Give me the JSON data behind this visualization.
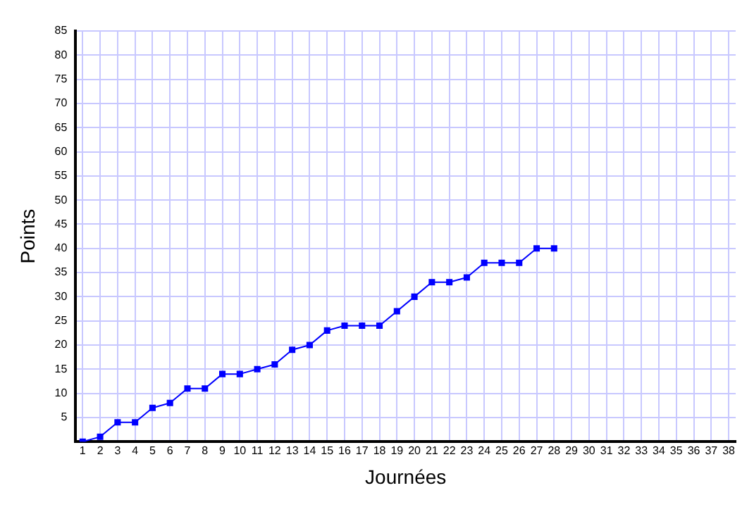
{
  "chart_data": {
    "type": "line",
    "xlabel": "Journées",
    "ylabel": "Points",
    "x": [
      1,
      2,
      3,
      4,
      5,
      6,
      7,
      8,
      9,
      10,
      11,
      12,
      13,
      14,
      15,
      16,
      17,
      18,
      19,
      20,
      21,
      22,
      23,
      24,
      25,
      26,
      27,
      28
    ],
    "series": [
      {
        "color": "#0000ff",
        "values": [
          0,
          1,
          4,
          4,
          7,
          8,
          11,
          11,
          14,
          14,
          15,
          16,
          19,
          20,
          23,
          24,
          24,
          24,
          27,
          30,
          33,
          33,
          34,
          37,
          37,
          37,
          40,
          40
        ]
      }
    ],
    "xlim": [
      0.6,
      38.4
    ],
    "xticks": [
      1,
      2,
      3,
      4,
      5,
      6,
      7,
      8,
      9,
      10,
      11,
      12,
      13,
      14,
      15,
      16,
      17,
      18,
      19,
      20,
      21,
      22,
      23,
      24,
      25,
      26,
      27,
      28,
      29,
      30,
      31,
      32,
      33,
      34,
      35,
      36,
      37,
      38
    ],
    "ylim": [
      0,
      85
    ],
    "yticks": [
      5,
      10,
      15,
      20,
      25,
      30,
      35,
      40,
      45,
      50,
      55,
      60,
      65,
      70,
      75,
      80,
      85
    ],
    "grid": true,
    "legend": false,
    "marker": "square",
    "line_style": "solid"
  }
}
